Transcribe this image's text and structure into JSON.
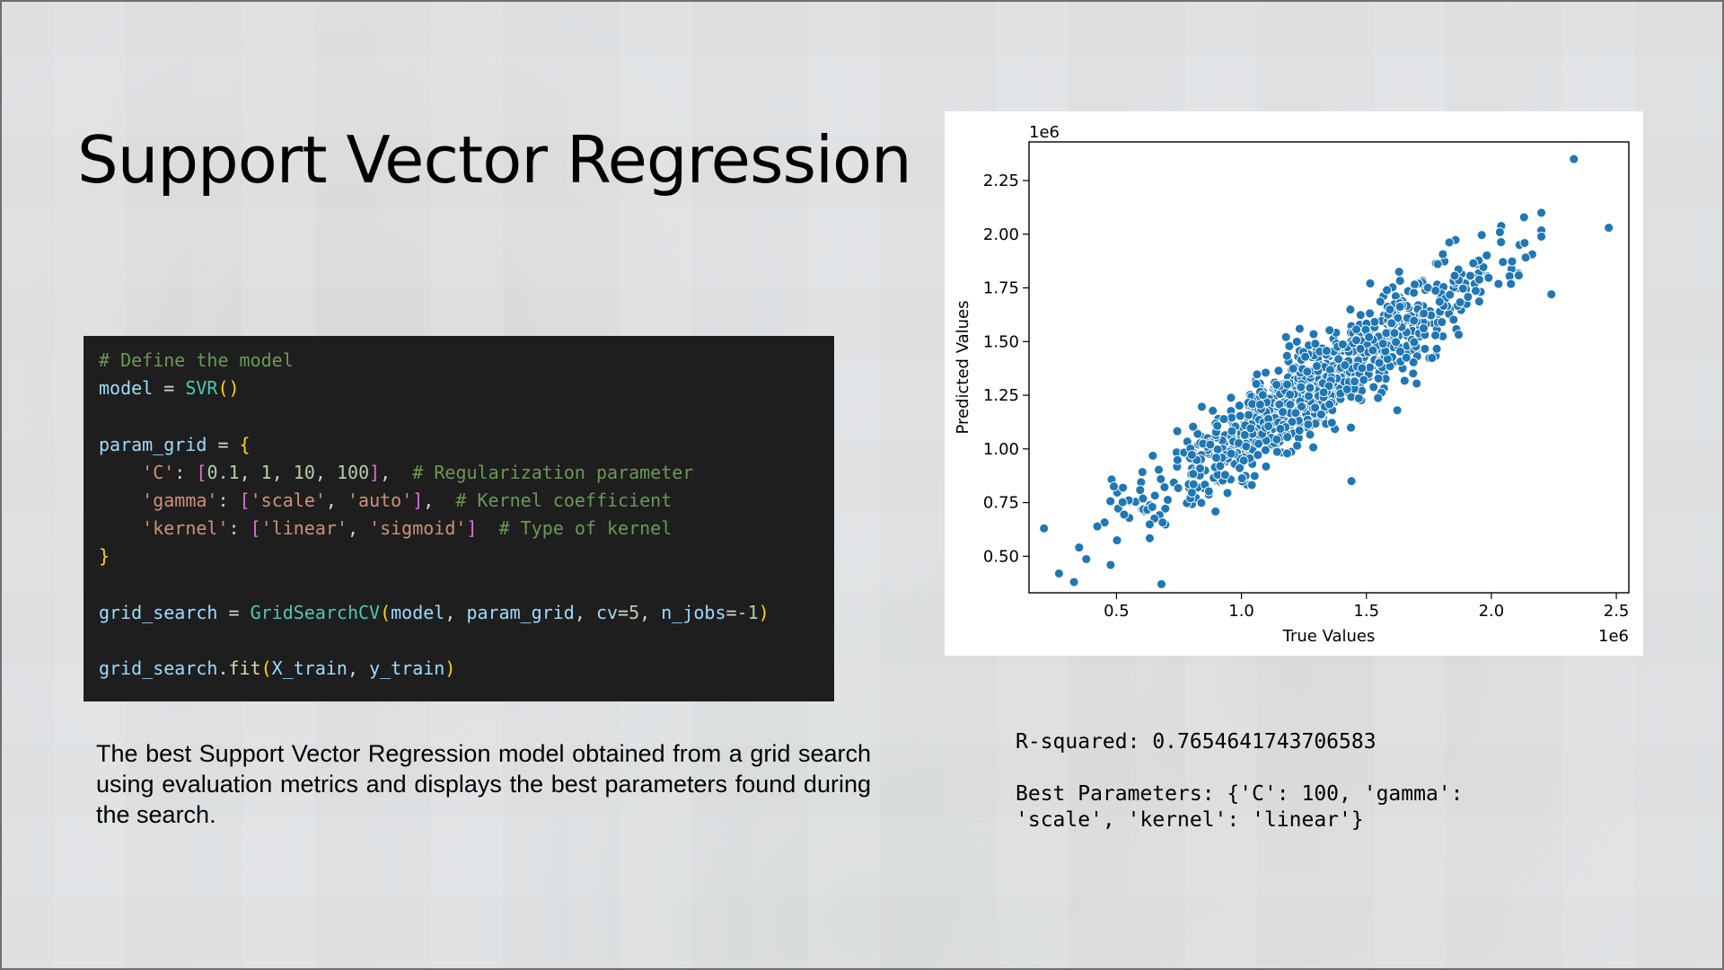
{
  "slide": {
    "title": "Support Vector Regression",
    "description": "The best Support Vector Regression model obtained from a grid search using evaluation metrics and displays the best parameters found during the search.",
    "output": {
      "r_squared": "R-squared: 0.7654641743706583",
      "best_params_line1": "Best Parameters: {'C': 100, 'gamma':",
      "best_params_line2": "'scale', 'kernel': 'linear'}"
    }
  },
  "code": {
    "line1": "# Define the model",
    "line2_var": "model",
    "line2_op": " = ",
    "line2_cls": "SVR",
    "line2_paren": "()",
    "line4_var": "param_grid",
    "line4_op": " = ",
    "line4_brace": "{",
    "line5_key": "'C'",
    "line5_colon": ": ",
    "line5_open": "[",
    "line5_vals": [
      "0.1",
      "1",
      "10",
      "100"
    ],
    "line5_close": "]",
    "line5_comment": "# Regularization parameter",
    "line6_key": "'gamma'",
    "line6_vals": [
      "'scale'",
      "'auto'"
    ],
    "line6_comment": "# Kernel coefficient",
    "line7_key": "'kernel'",
    "line7_vals": [
      "'linear'",
      "'sigmoid'"
    ],
    "line7_comment": "# Type of kernel",
    "line8_brace": "}",
    "line10_var": "grid_search",
    "line10_cls": "GridSearchCV",
    "line10_arg1": "model",
    "line10_arg2": "param_grid",
    "line10_kw1": "cv",
    "line10_kw1_val": "5",
    "line10_kw2": "n_jobs",
    "line10_kw2_val": "-1",
    "line12_obj": "grid_search",
    "line12_fn": "fit",
    "line12_arg1": "X_train",
    "line12_arg2": "y_train"
  },
  "chart_data": {
    "type": "scatter",
    "xlabel": "True Values",
    "ylabel": "Predicted Values",
    "x_offset_label": "1e6",
    "y_offset_label": "1e6",
    "xlim": [
      0.15,
      2.55
    ],
    "ylim": [
      0.33,
      2.43
    ],
    "x_ticks": [
      0.5,
      1.0,
      1.5,
      2.0,
      2.5
    ],
    "x_tick_labels": [
      "0.5",
      "1.0",
      "1.5",
      "2.0",
      "2.5"
    ],
    "y_ticks": [
      0.5,
      0.75,
      1.0,
      1.25,
      1.5,
      1.75,
      2.0,
      2.25
    ],
    "y_tick_labels": [
      "0.50",
      "0.75",
      "1.00",
      "1.25",
      "1.50",
      "1.75",
      "2.00",
      "2.25"
    ],
    "grid": false,
    "color": "#1f77b4",
    "point_count": 1000,
    "trend_slope": 0.77,
    "trend_intercept": 0.29,
    "noise_sd": 0.11,
    "x_mean": 1.3,
    "x_sd": 0.35,
    "notable_points": [
      {
        "x": 2.33,
        "y": 2.35
      },
      {
        "x": 2.47,
        "y": 2.03
      },
      {
        "x": 2.24,
        "y": 1.72
      },
      {
        "x": 0.21,
        "y": 0.63
      },
      {
        "x": 0.33,
        "y": 0.38
      },
      {
        "x": 0.68,
        "y": 0.37
      },
      {
        "x": 0.27,
        "y": 0.42
      },
      {
        "x": 1.44,
        "y": 0.85
      }
    ]
  }
}
